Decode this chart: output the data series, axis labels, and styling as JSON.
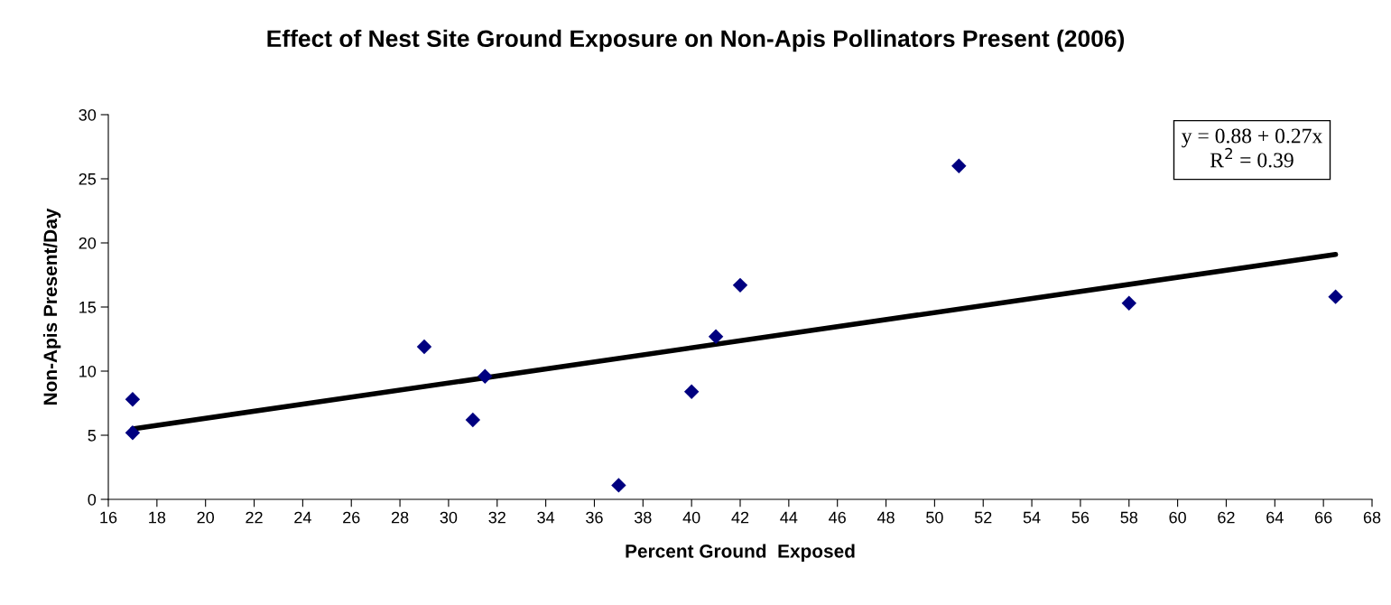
{
  "chart_data": {
    "type": "scatter",
    "title": "Effect of Nest Site Ground Exposure on Non-Apis Pollinators Present (2006)",
    "xlabel": "Percent Ground  Exposed",
    "ylabel": "Non-Apis Present/Day",
    "x": [
      17,
      17,
      29,
      31,
      31.5,
      37,
      40,
      41,
      42,
      51,
      58,
      66.5
    ],
    "series": [
      {
        "color": "#000080",
        "marker": "diamond",
        "values": [
          7.8,
          5.2,
          11.9,
          6.2,
          9.6,
          1.1,
          8.4,
          12.7,
          16.7,
          26.0,
          15.3,
          15.8
        ]
      },
      {
        "type": "line",
        "color": "#000000",
        "marker": "none",
        "line_style": "solid",
        "x": [
          17,
          66.5
        ],
        "values": [
          5.5,
          19.1
        ]
      }
    ],
    "annotations": [
      "y = 0.88 + 0.27x",
      "R$^{2}$ = 0.39"
    ],
    "xlim": [
      16,
      68
    ],
    "xticks": [
      16,
      18,
      20,
      22,
      24,
      26,
      28,
      30,
      32,
      34,
      36,
      38,
      40,
      42,
      44,
      46,
      48,
      50,
      52,
      54,
      56,
      58,
      60,
      62,
      64,
      66,
      68
    ],
    "ylim": [
      0,
      30
    ],
    "yticks": [
      0,
      5,
      10,
      15,
      20,
      25,
      30
    ],
    "grid": false,
    "legend": false
  }
}
